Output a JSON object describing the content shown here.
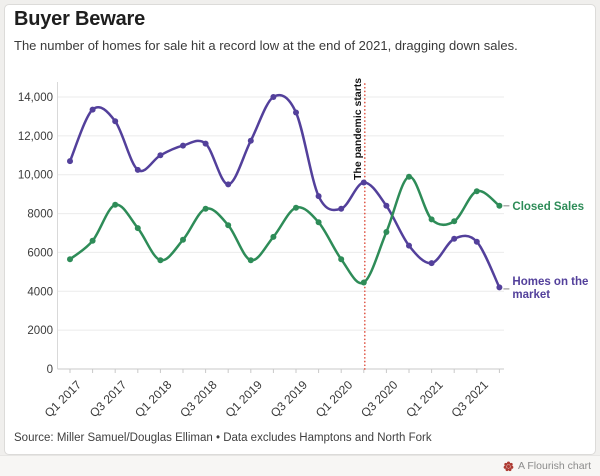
{
  "header": {
    "title": "Buyer Beware",
    "subtitle": "The number of homes for sale hit a record low at the end of 2021, dragging down sales."
  },
  "chart_data": {
    "type": "line",
    "title": "Buyer Beware",
    "categories": [
      "Q1 2017",
      "Q2 2017",
      "Q3 2017",
      "Q4 2017",
      "Q1 2018",
      "Q2 2018",
      "Q3 2018",
      "Q4 2018",
      "Q1 2019",
      "Q2 2019",
      "Q3 2019",
      "Q4 2019",
      "Q1 2020",
      "Q2 2020",
      "Q3 2020",
      "Q4 2020",
      "Q1 2021",
      "Q2 2021",
      "Q3 2021",
      "Q4 2021"
    ],
    "series": [
      {
        "name": "Homes on the market",
        "label_lines": [
          "Homes on the",
          "market"
        ],
        "color": "#53409b",
        "values": [
          10700,
          13350,
          12750,
          10250,
          11000,
          11500,
          11600,
          9500,
          11750,
          14000,
          13200,
          8900,
          8250,
          9600,
          8400,
          6350,
          5450,
          6700,
          6550,
          4200
        ]
      },
      {
        "name": "Closed Sales",
        "label_lines": [
          "Closed Sales"
        ],
        "color": "#2e8c58",
        "values": [
          5650,
          6600,
          8450,
          7250,
          5600,
          6650,
          8250,
          7400,
          5600,
          6800,
          8300,
          7550,
          5650,
          4450,
          7050,
          9900,
          7700,
          7600,
          9150,
          8400
        ]
      }
    ],
    "ylim": [
      0,
      14000
    ],
    "y_tick_step": 2000,
    "y_tick_labels": [
      "0",
      "2000",
      "4000",
      "6000",
      "8000",
      "10,000",
      "12,000",
      "14,000"
    ],
    "x_tick_labels_shown": [
      "Q1 2017",
      "Q3 2017",
      "Q1 2018",
      "Q3 2018",
      "Q1 2019",
      "Q3 2019",
      "Q1 2020",
      "Q3 2020",
      "Q1 2021",
      "Q3 2021"
    ],
    "x_label_every": 2,
    "grid": "horizontal",
    "legend": "direct-labels-right",
    "annotation": {
      "label": "The pandemic starts",
      "x": "Q2 2020",
      "line_color": "#e05a4b"
    },
    "colors": {
      "grid": "#ebebeb",
      "axis": "#c9c9c9",
      "axis_side": "#d9d9d9",
      "tick_text": "#3b3b3b",
      "annotation_text": "#111111"
    }
  },
  "source": {
    "text": "Source: Miller Samuel/Douglas Elliman • Data excludes Hamptons and North Fork"
  },
  "footer": {
    "credit": "A Flourish chart",
    "icon_color": "#ad3a32"
  }
}
